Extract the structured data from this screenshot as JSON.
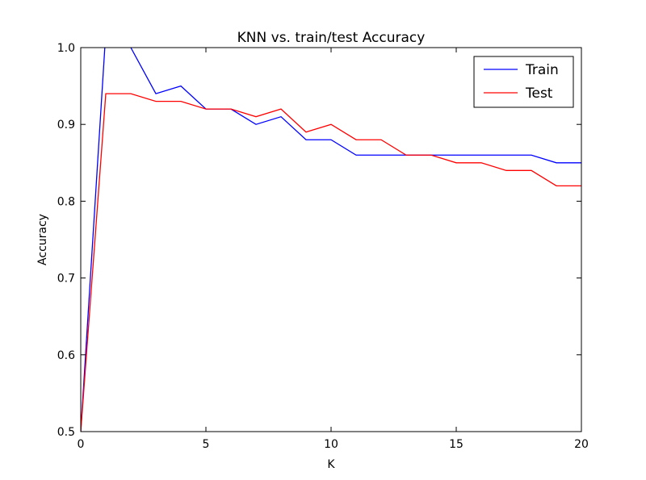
{
  "chart_data": {
    "type": "line",
    "title": "KNN vs. train/test Accuracy",
    "xlabel": "K",
    "ylabel": "Accuracy",
    "xlim": [
      0,
      20
    ],
    "ylim": [
      0.5,
      1.0
    ],
    "xticks": [
      0,
      5,
      10,
      15,
      20
    ],
    "yticks": [
      0.5,
      0.6,
      0.7,
      0.8,
      0.9,
      1.0
    ],
    "xtick_labels": [
      "0",
      "5",
      "10",
      "15",
      "20"
    ],
    "ytick_labels": [
      "0.5",
      "0.6",
      "0.7",
      "0.8",
      "0.9",
      "1.0"
    ],
    "grid": false,
    "legend_position": "top-right",
    "x": [
      0,
      1,
      2,
      3,
      4,
      5,
      6,
      7,
      8,
      9,
      10,
      11,
      12,
      13,
      14,
      15,
      16,
      17,
      18,
      19,
      20
    ],
    "series": [
      {
        "name": "Train",
        "color": "#0000ff",
        "values": [
          0.5,
          1.02,
          1.0,
          0.94,
          0.95,
          0.92,
          0.92,
          0.9,
          0.91,
          0.88,
          0.88,
          0.86,
          0.86,
          0.86,
          0.86,
          0.86,
          0.86,
          0.86,
          0.86,
          0.85,
          0.85
        ]
      },
      {
        "name": "Test",
        "color": "#ff0000",
        "values": [
          0.5,
          0.94,
          0.94,
          0.93,
          0.93,
          0.92,
          0.92,
          0.91,
          0.92,
          0.89,
          0.9,
          0.88,
          0.88,
          0.86,
          0.86,
          0.85,
          0.85,
          0.84,
          0.84,
          0.82,
          0.82
        ]
      }
    ]
  }
}
